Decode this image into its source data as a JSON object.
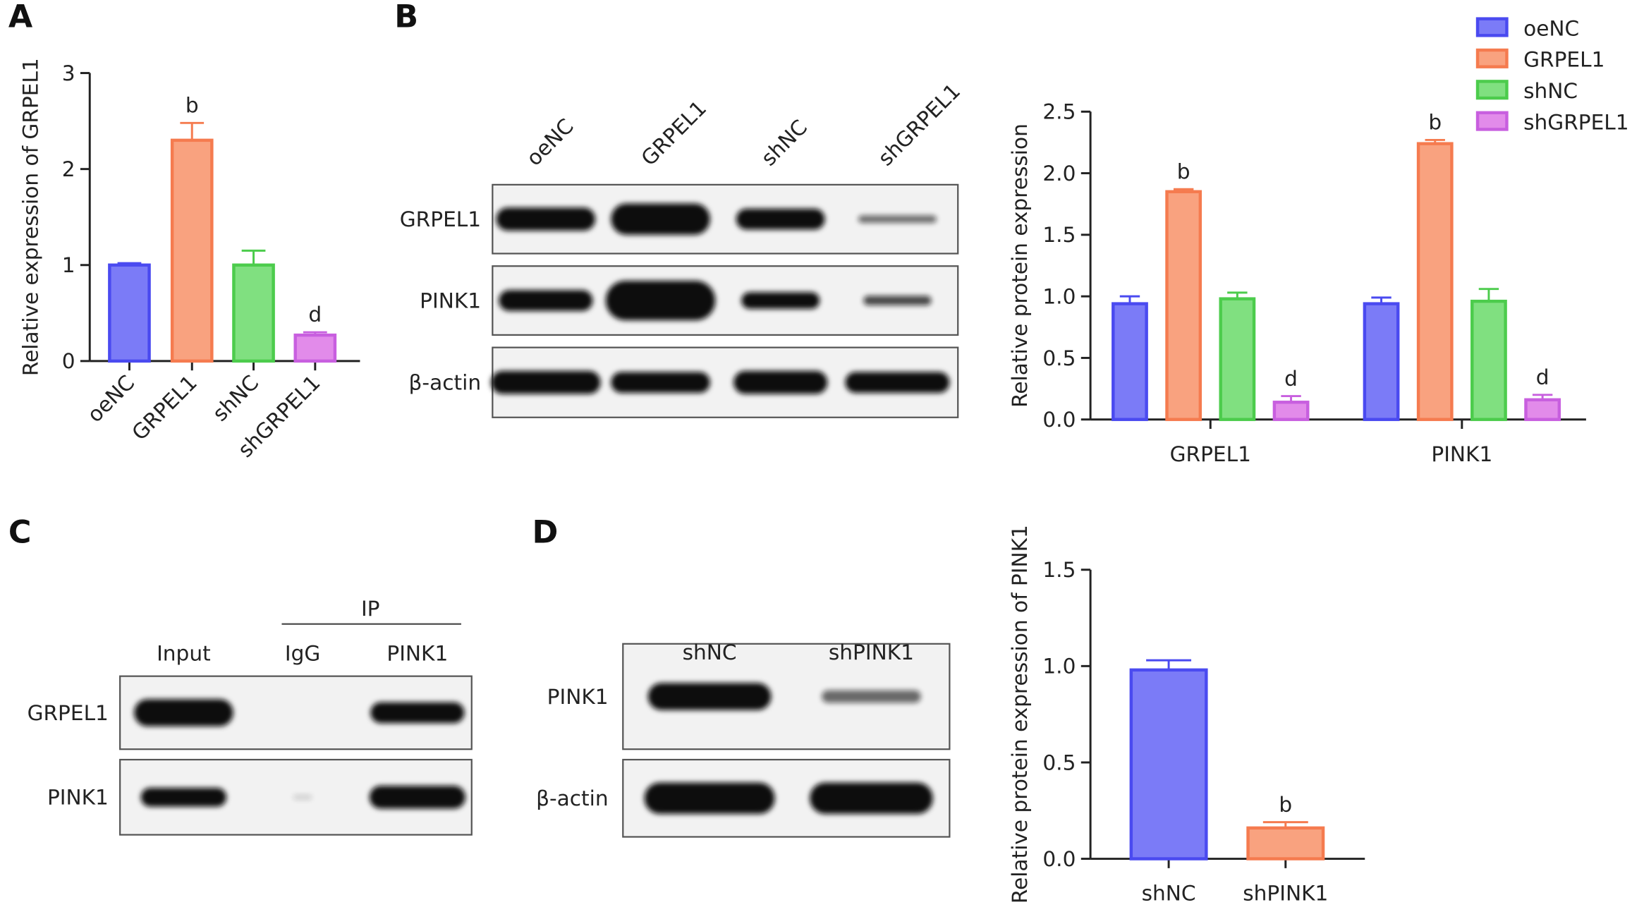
{
  "panels": [
    "A",
    "B",
    "C",
    "D"
  ],
  "chart_data": [
    {
      "type": "bar",
      "ylabel": "Relative expression of GRPEL1",
      "categories": [
        "oeNC",
        "GRPEL1",
        "shNC",
        "shGRPEL1"
      ],
      "values": [
        1.0,
        2.3,
        1.0,
        0.27
      ],
      "errors": [
        0.02,
        0.18,
        0.15,
        0.03
      ],
      "annotations": [
        null,
        "b",
        null,
        "d"
      ],
      "colors": [
        "#7b7bf7",
        "#f9a27f",
        "#80e080",
        "#e28bea"
      ],
      "edge_colors": [
        "#4a4af0",
        "#f57b4f",
        "#4ccc4c",
        "#c85fdf"
      ],
      "ylim": [
        0,
        3
      ],
      "yticks": [
        0,
        1,
        2,
        3
      ]
    },
    {
      "type": "grouped_bar",
      "ylabel": "Relative protein expression",
      "categories": [
        "GRPEL1",
        "PINK1"
      ],
      "series": [
        {
          "name": "oeNC",
          "color": "#7b7bf7",
          "edge_color": "#4a4af0",
          "values": [
            0.94,
            0.94
          ],
          "errors": [
            0.06,
            0.05
          ],
          "annotations": [
            null,
            null
          ]
        },
        {
          "name": "GRPEL1",
          "color": "#f9a27f",
          "edge_color": "#f57b4f",
          "values": [
            1.85,
            2.24
          ],
          "errors": [
            0.02,
            0.03
          ],
          "annotations": [
            "b",
            "b"
          ]
        },
        {
          "name": "shNC",
          "color": "#80e080",
          "edge_color": "#4ccc4c",
          "values": [
            0.98,
            0.96
          ],
          "errors": [
            0.05,
            0.1
          ],
          "annotations": [
            null,
            null
          ]
        },
        {
          "name": "shGRPEL1",
          "color": "#e28bea",
          "edge_color": "#c85fdf",
          "values": [
            0.14,
            0.16
          ],
          "errors": [
            0.05,
            0.04
          ],
          "annotations": [
            "d",
            "d"
          ]
        }
      ],
      "legend": "upper right",
      "ylim": [
        0,
        2.5
      ],
      "yticks": [
        {
          "value": 0,
          "label": "0.0"
        },
        {
          "value": 0.5,
          "label": "0.5"
        },
        {
          "value": 1,
          "label": "1.0"
        },
        {
          "value": 1.5,
          "label": "1.5"
        },
        {
          "value": 2,
          "label": "2.0"
        },
        {
          "value": 2.5,
          "label": "2.5"
        }
      ]
    },
    {
      "type": "bar",
      "ylabel": "Relative protein expression of PINK1",
      "categories": [
        "shNC",
        "shPINK1"
      ],
      "values": [
        0.98,
        0.16
      ],
      "errors": [
        0.05,
        0.03
      ],
      "annotations": [
        null,
        "b"
      ],
      "colors": [
        "#7b7bf7",
        "#f9a27f"
      ],
      "edge_colors": [
        "#4a4af0",
        "#f57b4f"
      ],
      "ylim": [
        0,
        1.5
      ],
      "yticks": [
        {
          "value": 0,
          "label": "0.0"
        },
        {
          "value": 0.5,
          "label": "0.5"
        },
        {
          "value": 1,
          "label": "1.0"
        },
        {
          "value": 1.5,
          "label": "1.5"
        }
      ]
    }
  ],
  "blots": [
    {
      "lanes": [
        "oeNC",
        "GRPEL1",
        "shNC",
        "shGRPEL1"
      ],
      "rows": [
        "GRPEL1",
        "PINK1",
        "β-actin"
      ]
    },
    {
      "header": "IP",
      "lanes": [
        "Input",
        "IgG",
        "PINK1"
      ],
      "rows": [
        "GRPEL1",
        "PINK1"
      ]
    },
    {
      "lanes": [
        "shNC",
        "shPINK1"
      ],
      "rows": [
        "PINK1",
        "β-actin"
      ]
    }
  ]
}
